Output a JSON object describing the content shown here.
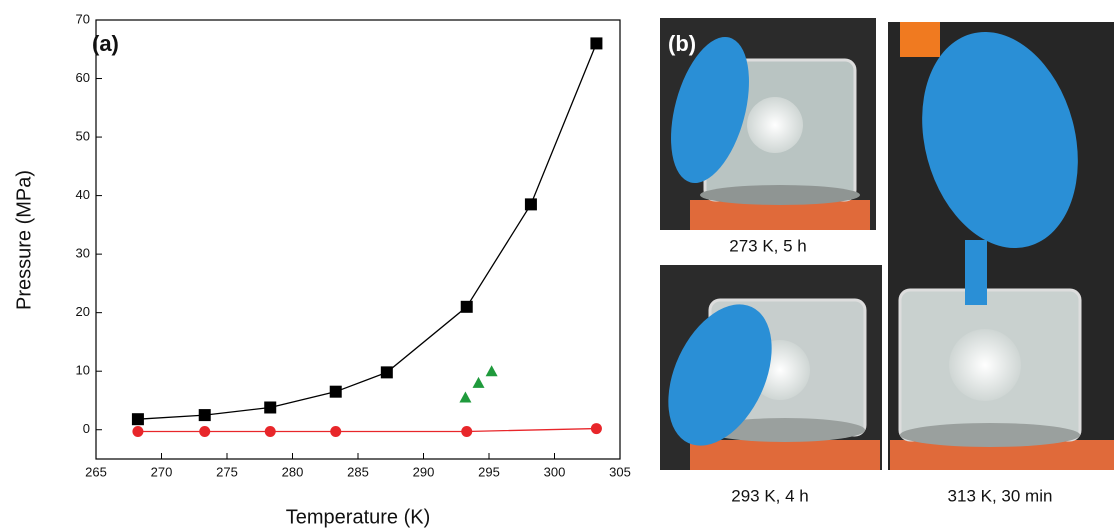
{
  "chart_data": {
    "type": "line",
    "panel_label": "(a)",
    "x_label": "Temperature (K)",
    "y_label": "Pressure (MPa)",
    "xlim": [
      265,
      305
    ],
    "xticks": [
      265,
      270,
      275,
      280,
      285,
      290,
      295,
      300,
      305
    ],
    "ylim": [
      -5,
      70
    ],
    "yticks": [
      0,
      10,
      20,
      30,
      40,
      50,
      60,
      70
    ],
    "series": [
      {
        "color": "#000000",
        "marker": "square",
        "line": true,
        "x": [
          268.2,
          273.3,
          278.3,
          283.3,
          287.2,
          293.3,
          298.2,
          303.2
        ],
        "values": [
          1.8,
          2.5,
          3.8,
          6.5,
          9.8,
          21,
          38.5,
          66
        ]
      },
      {
        "color": "#e8262a",
        "marker": "circle",
        "line": true,
        "x": [
          268.2,
          273.3,
          278.3,
          283.3,
          293.3,
          303.2
        ],
        "values": [
          -0.3,
          -0.3,
          -0.3,
          -0.3,
          -0.3,
          0.2
        ]
      },
      {
        "color": "#1f9a3c",
        "marker": "triangle",
        "line": false,
        "x": [
          293.2,
          294.2,
          295.2
        ],
        "values": [
          5.5,
          8,
          10
        ]
      }
    ]
  },
  "photo_panel": {
    "label": "(b)",
    "captions": [
      "273 K, 5 h",
      "293 K, 4 h",
      "313 K, 30 min"
    ]
  }
}
